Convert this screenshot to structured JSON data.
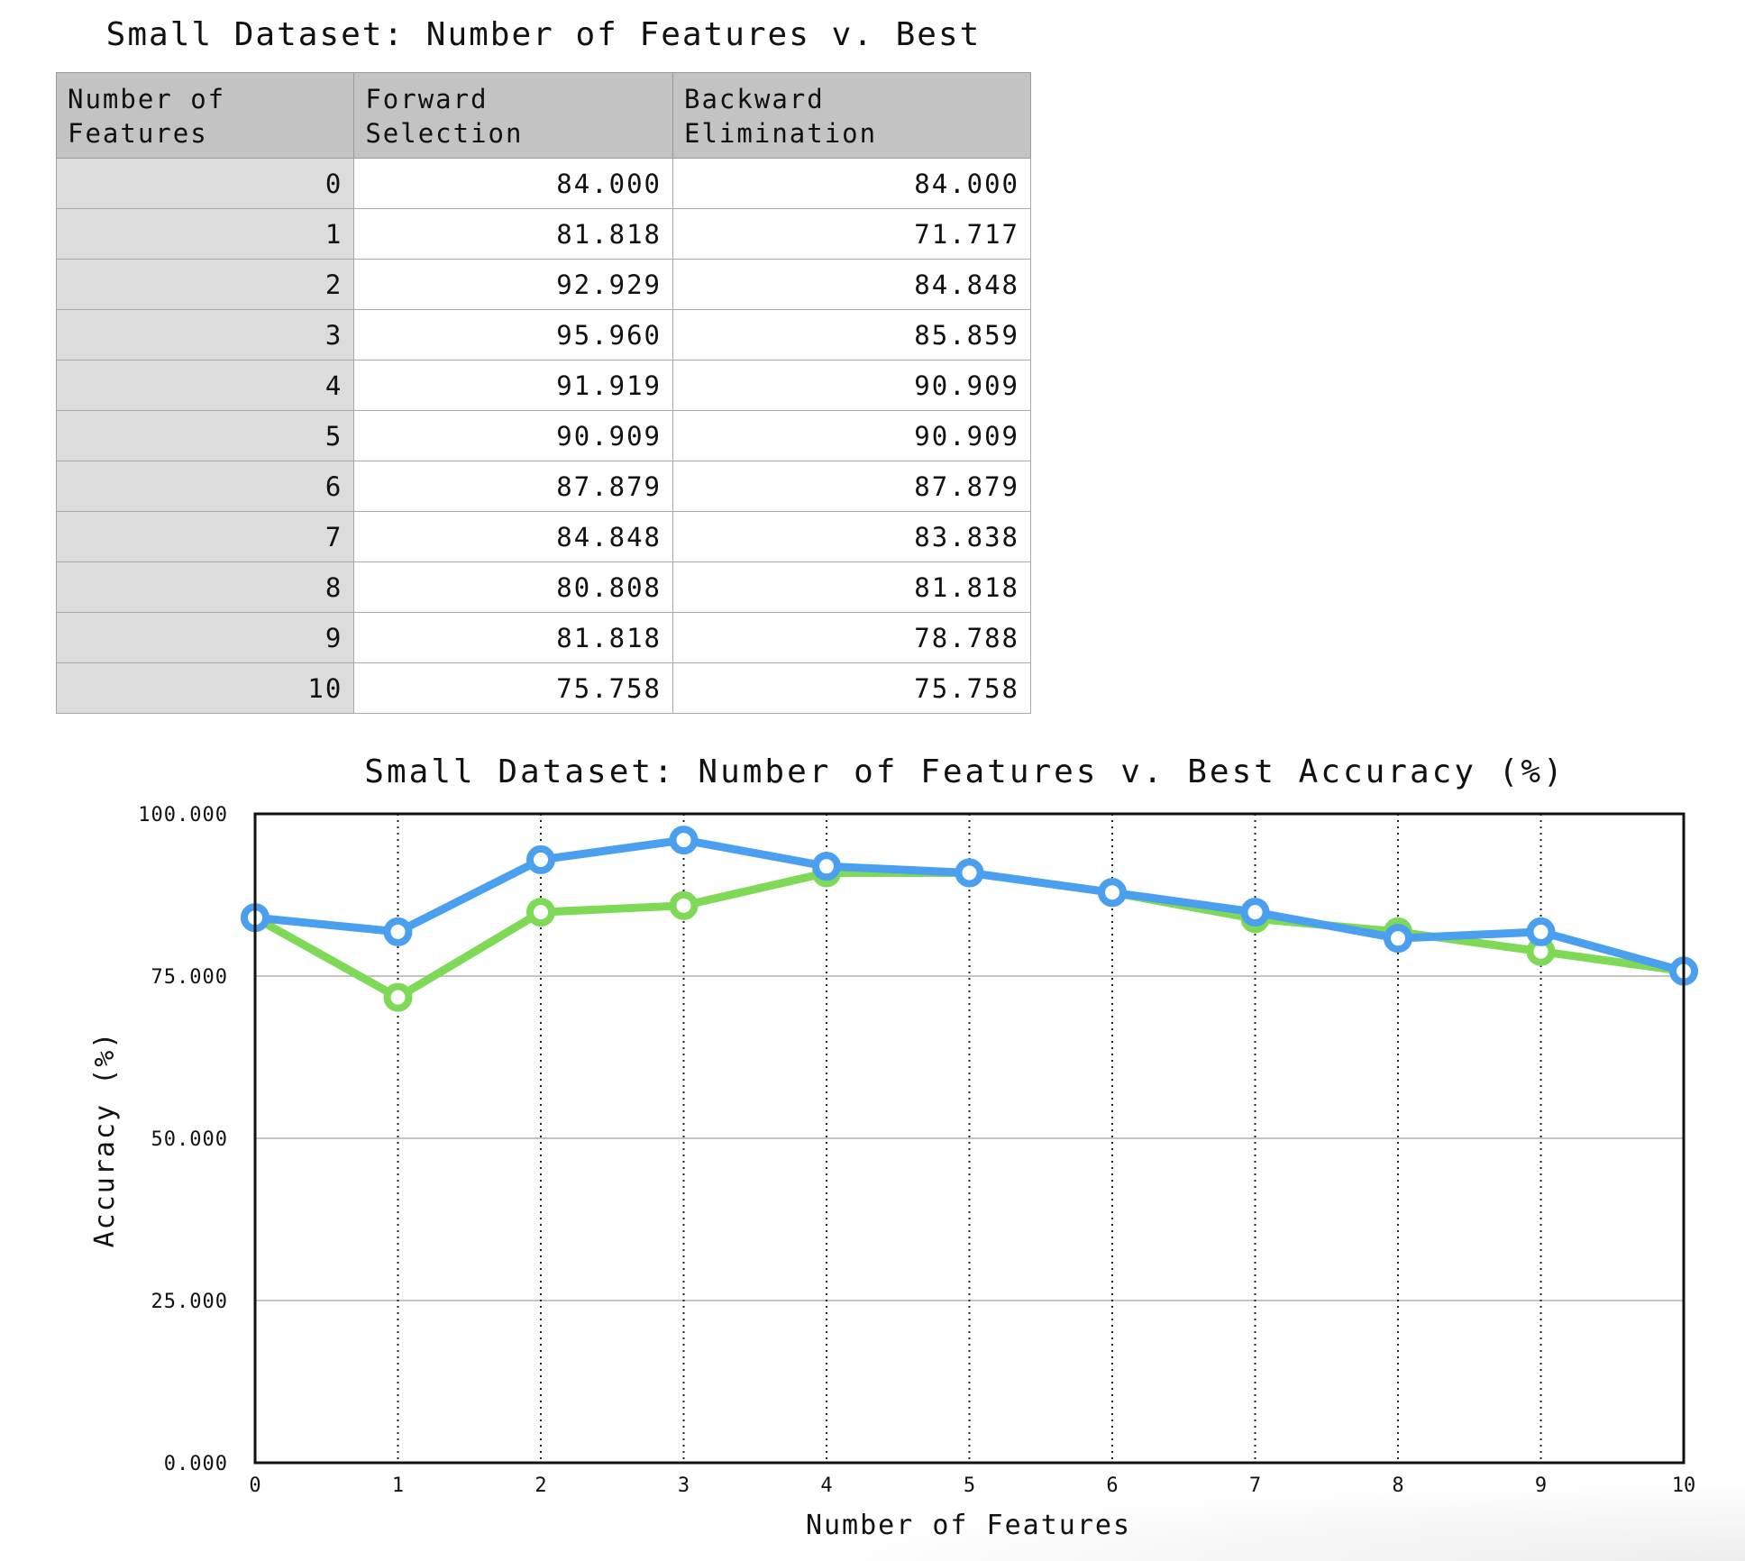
{
  "table": {
    "title": "Small Dataset: Number of Features v. Best",
    "headers": [
      "Number of Features",
      "Forward Selection",
      "Backward Elimination"
    ],
    "rows": [
      [
        "0",
        "84.000",
        "84.000"
      ],
      [
        "1",
        "81.818",
        "71.717"
      ],
      [
        "2",
        "92.929",
        "84.848"
      ],
      [
        "3",
        "95.960",
        "85.859"
      ],
      [
        "4",
        "91.919",
        "90.909"
      ],
      [
        "5",
        "90.909",
        "90.909"
      ],
      [
        "6",
        "87.879",
        "87.879"
      ],
      [
        "7",
        "84.848",
        "83.838"
      ],
      [
        "8",
        "80.808",
        "81.818"
      ],
      [
        "9",
        "81.818",
        "78.788"
      ],
      [
        "10",
        "75.758",
        "75.758"
      ]
    ]
  },
  "chart_data": {
    "type": "line",
    "title": "Small Dataset: Number of Features v. Best Accuracy (%)",
    "xlabel": "Number of Features",
    "ylabel": "Accuracy (%)",
    "x": [
      0,
      1,
      2,
      3,
      4,
      5,
      6,
      7,
      8,
      9,
      10
    ],
    "xlim": [
      0,
      10
    ],
    "ylim": [
      0,
      100
    ],
    "yticks": [
      "0.000",
      "25.000",
      "50.000",
      "75.000",
      "100.000"
    ],
    "ytick_values": [
      0,
      25,
      50,
      75,
      100
    ],
    "xticks": [
      "0",
      "1",
      "2",
      "3",
      "4",
      "5",
      "6",
      "7",
      "8",
      "9",
      "10"
    ],
    "grid": "vertical dotted, horizontal solid",
    "legend": "none",
    "series": [
      {
        "values": [
          84.0,
          71.717,
          84.848,
          85.859,
          90.909,
          90.909,
          87.879,
          83.838,
          81.818,
          78.788,
          75.758
        ],
        "color": "#7ed957"
      },
      {
        "values": [
          84.0,
          81.818,
          92.929,
          95.96,
          91.919,
          90.909,
          87.879,
          84.848,
          80.808,
          81.818,
          75.758
        ],
        "color": "#4a9fee"
      }
    ]
  }
}
